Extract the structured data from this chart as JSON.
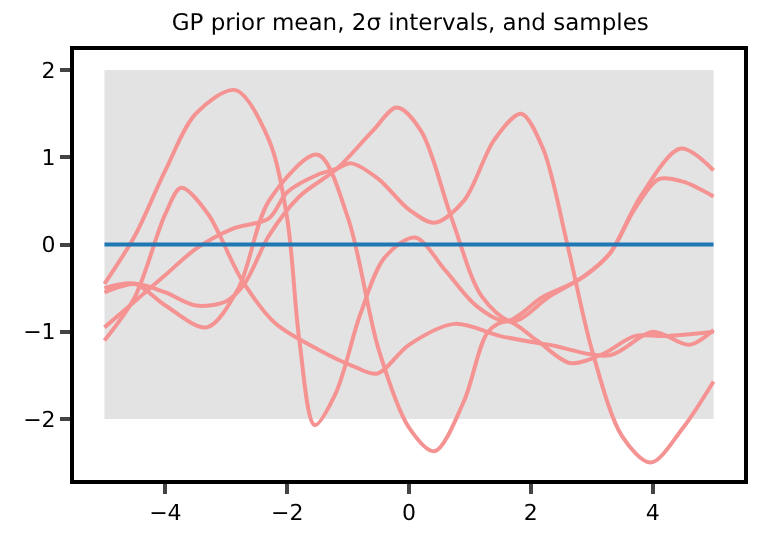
{
  "chart_data": {
    "type": "line",
    "title": "GP prior mean, 2σ intervals, and samples",
    "xlim": [
      -5.5,
      5.5
    ],
    "ylim": [
      -2.7,
      2.23
    ],
    "xticks": [
      {
        "value": -4,
        "label": "−4"
      },
      {
        "value": -2,
        "label": "−2"
      },
      0,
      2,
      4
    ],
    "yticks": [
      {
        "value": -2,
        "label": "−2"
      },
      {
        "value": -1,
        "label": "−1"
      },
      0,
      1,
      2
    ],
    "marker": "none",
    "line_style": "solid",
    "series": [
      {
        "color": "#1f77b4",
        "x": [
          -5,
          5
        ],
        "values": [
          0,
          0
        ],
        "lower": [
          -2,
          -2
        ],
        "upper": [
          2,
          2
        ]
      },
      {
        "color": "#f59393",
        "x": [
          -5,
          -4.5,
          -4,
          -3.5,
          -2.85,
          -2.3,
          -2,
          -1.8,
          -1.55,
          -1.2,
          -0.8,
          -0.4,
          0.1,
          0.6,
          1.1,
          1.6,
          2.2,
          2.8,
          3.3,
          3.7,
          4.1,
          4.5,
          5
        ],
        "values": [
          -0.45,
          0.1,
          0.85,
          1.5,
          1.77,
          1.2,
          0.3,
          -1.1,
          -2.07,
          -1.7,
          -0.8,
          -0.15,
          0.08,
          -0.3,
          -0.7,
          -0.88,
          -0.6,
          -0.4,
          -0.1,
          0.4,
          0.75,
          0.72,
          0.55
        ]
      },
      {
        "color": "#f59393",
        "x": [
          -5,
          -4.5,
          -4,
          -3.74,
          -3.3,
          -2.75,
          -2.2,
          -1.5,
          -0.9,
          -0.52,
          0,
          0.75,
          1.5,
          2.3,
          3.3,
          4,
          4.6,
          5
        ],
        "values": [
          -1.1,
          -0.6,
          0.35,
          0.65,
          0.35,
          -0.4,
          -0.9,
          -1.2,
          -1.4,
          -1.48,
          -1.15,
          -0.91,
          -1.05,
          -1.15,
          -1.27,
          -1.0,
          -1.15,
          -0.98
        ]
      },
      {
        "color": "#f59393",
        "x": [
          -5,
          -4.5,
          -4,
          -3.32,
          -2.8,
          -2.3,
          -1.5,
          -1,
          -0.5,
          0,
          0.42,
          0.9,
          1.3,
          1.62,
          2.1,
          2.65,
          3.2,
          3.7,
          4.2,
          5
        ],
        "values": [
          -0.5,
          -0.45,
          -0.7,
          -0.95,
          -0.5,
          0.5,
          1.03,
          0.3,
          -1.2,
          -2.1,
          -2.37,
          -1.8,
          -1.0,
          -0.88,
          -1.1,
          -1.36,
          -1.25,
          -1.05,
          -1.05,
          -1.0
        ]
      },
      {
        "color": "#f59393",
        "x": [
          -5,
          -4.5,
          -4,
          -3.5,
          -2.9,
          -2.3,
          -2,
          -1.5,
          -1.18,
          -0.95,
          -0.5,
          0,
          0.42,
          0.9,
          1.4,
          1.84,
          2.2,
          2.6,
          3,
          3.5,
          3.97,
          4.5,
          5
        ],
        "values": [
          -0.95,
          -0.65,
          -0.35,
          -0.05,
          0.18,
          0.3,
          0.6,
          0.8,
          0.87,
          0.93,
          0.75,
          0.4,
          0.25,
          0.5,
          1.2,
          1.5,
          1.1,
          0.0,
          -1.2,
          -2.2,
          -2.5,
          -2.1,
          -1.57
        ]
      },
      {
        "color": "#f59393",
        "x": [
          -5,
          -4.5,
          -4,
          -3.5,
          -3,
          -2.7,
          -2.3,
          -1.8,
          -1.18,
          -0.6,
          -0.2,
          0.2,
          0.7,
          1.2,
          1.7,
          2.3,
          2.9,
          3.3,
          3.8,
          4.46,
          5
        ],
        "values": [
          -0.55,
          -0.45,
          -0.55,
          -0.7,
          -0.65,
          -0.45,
          0.1,
          0.55,
          0.87,
          1.3,
          1.57,
          1.3,
          0.3,
          -0.6,
          -0.88,
          -0.6,
          -0.35,
          -0.1,
          0.55,
          1.1,
          0.85
        ]
      }
    ]
  }
}
